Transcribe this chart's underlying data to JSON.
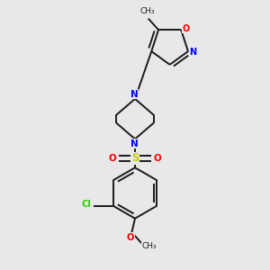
{
  "background_color": "#e8e8e8",
  "bond_color": "#1a1a1a",
  "atom_colors": {
    "N": "#0000ff",
    "O": "#ff0000",
    "S": "#cccc00",
    "Cl": "#33cc00",
    "C": "#1a1a1a"
  },
  "line_width": 1.4,
  "fig_size": [
    3.0,
    3.0
  ],
  "dpi": 100
}
